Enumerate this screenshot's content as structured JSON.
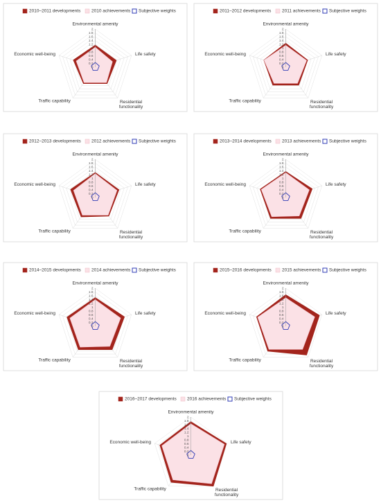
{
  "chart_data": [
    {
      "type": "radar",
      "categories": [
        "Environmental amenity",
        "Life safety",
        "Residential functionality",
        "Traffic capability",
        "Economic well-being"
      ],
      "rlim": [
        0,
        2
      ],
      "rticks": [
        0,
        0.2,
        0.4,
        0.6,
        0.8,
        1,
        1.2,
        1.4,
        1.6,
        1.8,
        2
      ],
      "series": [
        {
          "name": "2010–2011 developments",
          "color": "#a3241c",
          "values": [
            1.15,
            1.15,
            1.05,
            1.05,
            1.2
          ]
        },
        {
          "name": "2010 achievements",
          "color": "#fbe1e6",
          "values": [
            1.05,
            0.95,
            1.0,
            1.0,
            1.05
          ]
        },
        {
          "name": "Subjective weights",
          "color": "#2f3bb5",
          "values": [
            0.25,
            0.22,
            0.2,
            0.2,
            0.22
          ]
        }
      ]
    },
    {
      "type": "radar",
      "categories": [
        "Environmental amenity",
        "Life safety",
        "Residential functionality",
        "Traffic capability",
        "Economic well-being"
      ],
      "rlim": [
        0,
        2
      ],
      "rticks": [
        0,
        0.2,
        0.4,
        0.6,
        0.8,
        1,
        1.2,
        1.4,
        1.6,
        1.8,
        2
      ],
      "series": [
        {
          "name": "2011–2012 developments",
          "color": "#a3241c",
          "values": [
            1.25,
            1.2,
            1.15,
            1.15,
            1.2
          ]
        },
        {
          "name": "2011 achievements",
          "color": "#fbe1e6",
          "values": [
            1.15,
            1.15,
            1.05,
            1.05,
            1.2
          ]
        },
        {
          "name": "Subjective weights",
          "color": "#2f3bb5",
          "values": [
            0.25,
            0.22,
            0.2,
            0.2,
            0.22
          ]
        }
      ]
    },
    {
      "type": "radar",
      "categories": [
        "Environmental amenity",
        "Life safety",
        "Residential functionality",
        "Traffic capability",
        "Economic well-being"
      ],
      "rlim": [
        0,
        2
      ],
      "rticks": [
        0,
        0.2,
        0.4,
        0.6,
        0.8,
        1,
        1.2,
        1.4,
        1.6,
        1.8,
        2
      ],
      "series": [
        {
          "name": "2012–2013 developments",
          "color": "#a3241c",
          "values": [
            1.3,
            1.3,
            1.2,
            1.25,
            1.35
          ]
        },
        {
          "name": "2012 achievements",
          "color": "#fbe1e6",
          "values": [
            1.25,
            1.2,
            1.15,
            1.15,
            1.2
          ]
        },
        {
          "name": "Subjective weights",
          "color": "#2f3bb5",
          "values": [
            0.25,
            0.22,
            0.2,
            0.2,
            0.22
          ]
        }
      ]
    },
    {
      "type": "radar",
      "categories": [
        "Environmental amenity",
        "Life safety",
        "Residential functionality",
        "Traffic capability",
        "Economic well-being"
      ],
      "rlim": [
        0,
        2
      ],
      "rticks": [
        0,
        0.2,
        0.4,
        0.6,
        0.8,
        1,
        1.2,
        1.4,
        1.6,
        1.8,
        2
      ],
      "series": [
        {
          "name": "2013–2014 developments",
          "color": "#a3241c",
          "values": [
            1.35,
            1.45,
            1.35,
            1.35,
            1.4
          ]
        },
        {
          "name": "2013 achievements",
          "color": "#fbe1e6",
          "values": [
            1.3,
            1.3,
            1.2,
            1.25,
            1.35
          ]
        },
        {
          "name": "Subjective weights",
          "color": "#2f3bb5",
          "values": [
            0.25,
            0.22,
            0.2,
            0.2,
            0.22
          ]
        }
      ]
    },
    {
      "type": "radar",
      "categories": [
        "Environmental amenity",
        "Life safety",
        "Residential functionality",
        "Traffic capability",
        "Economic well-being"
      ],
      "rlim": [
        0,
        2
      ],
      "rticks": [
        0,
        0.2,
        0.4,
        0.6,
        0.8,
        1,
        1.2,
        1.4,
        1.6,
        1.8,
        2
      ],
      "series": [
        {
          "name": "2014–2015 developments",
          "color": "#a3241c",
          "values": [
            1.5,
            1.6,
            1.5,
            1.5,
            1.55
          ]
        },
        {
          "name": "2014 achievements",
          "color": "#fbe1e6",
          "values": [
            1.4,
            1.4,
            1.3,
            1.35,
            1.4
          ]
        },
        {
          "name": "Subjective weights",
          "color": "#2f3bb5",
          "values": [
            0.25,
            0.22,
            0.2,
            0.2,
            0.22
          ]
        }
      ]
    },
    {
      "type": "radar",
      "categories": [
        "Environmental amenity",
        "Life safety",
        "Residential functionality",
        "Traffic capability",
        "Economic well-being"
      ],
      "rlim": [
        0,
        2
      ],
      "rticks": [
        0,
        0.2,
        0.4,
        0.6,
        0.8,
        1,
        1.2,
        1.4,
        1.6,
        1.8,
        2
      ],
      "series": [
        {
          "name": "2015–2016 developments",
          "color": "#a3241c",
          "values": [
            1.65,
            1.85,
            1.85,
            1.6,
            1.6
          ]
        },
        {
          "name": "2015 achievements",
          "color": "#fbe1e6",
          "values": [
            1.5,
            1.6,
            1.5,
            1.5,
            1.55
          ]
        },
        {
          "name": "Subjective weights",
          "color": "#2f3bb5",
          "values": [
            0.25,
            0.22,
            0.2,
            0.2,
            0.22
          ]
        }
      ]
    },
    {
      "type": "radar",
      "categories": [
        "Environmental amenity",
        "Life safety",
        "Residential functionality",
        "Traffic capability",
        "Economic well-being"
      ],
      "rlim": [
        0,
        2
      ],
      "rticks": [
        0,
        0.2,
        0.4,
        0.6,
        0.8,
        1,
        1.2,
        1.4,
        1.6,
        1.8,
        2
      ],
      "series": [
        {
          "name": "2016–2017 developments",
          "color": "#a3241c",
          "values": [
            1.75,
            1.95,
            2.0,
            1.75,
            1.7
          ]
        },
        {
          "name": "2016 achievements",
          "color": "#fbe1e6",
          "values": [
            1.65,
            1.85,
            1.85,
            1.6,
            1.6
          ]
        },
        {
          "name": "Subjective weights",
          "color": "#2f3bb5",
          "values": [
            0.25,
            0.22,
            0.2,
            0.2,
            0.22
          ]
        }
      ]
    }
  ]
}
